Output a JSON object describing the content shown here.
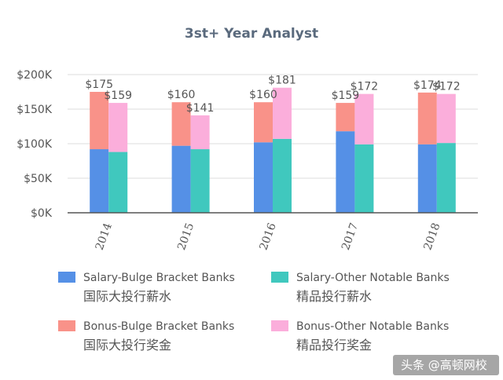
{
  "chart_data": {
    "type": "bar",
    "stacked": true,
    "grouped": true,
    "title": "3st+ Year Analyst",
    "categories": [
      "2014",
      "2015",
      "2016",
      "2017",
      "2018"
    ],
    "ylim": [
      0,
      200
    ],
    "yticks": [
      {
        "value": 0,
        "label": "$0K"
      },
      {
        "value": 50,
        "label": "$50K"
      },
      {
        "value": 100,
        "label": "$100K"
      },
      {
        "value": 150,
        "label": "$150K"
      },
      {
        "value": 200,
        "label": "$200K"
      }
    ],
    "grid": true,
    "groups": [
      {
        "name": "Bulge Bracket Banks",
        "salary": [
          92,
          97,
          102,
          118,
          99
        ],
        "bonus": [
          83,
          63,
          58,
          41,
          75
        ],
        "totals": [
          "$175",
          "$160",
          "$160",
          "$159",
          "$174"
        ]
      },
      {
        "name": "Other Notable Banks",
        "salary": [
          88,
          92,
          107,
          99,
          101
        ],
        "bonus": [
          71,
          49,
          74,
          73,
          71
        ],
        "totals": [
          "$159",
          "$141",
          "$181",
          "$172",
          "$172"
        ]
      }
    ],
    "series": [
      {
        "name": "Salary-Bulge Bracket Banks",
        "name_cn": "国际大投行薪水",
        "color": "#5590e6"
      },
      {
        "name": "Salary-Other Notable Banks",
        "name_cn": "精品投行薪水",
        "color": "#40c8be"
      },
      {
        "name": "Bonus-Bulge Bracket Banks",
        "name_cn": "国际大投行奖金",
        "color": "#f99289"
      },
      {
        "name": "Bonus-Other Notable Banks",
        "name_cn": "精品投行奖金",
        "color": "#fbaedb"
      }
    ],
    "legend_position": "bottom"
  },
  "watermark": "头条 @高顿网校",
  "colors": {
    "grid": "#dddddd",
    "axis": "#555555",
    "text": "#555555",
    "title": "#5a6a7d"
  }
}
